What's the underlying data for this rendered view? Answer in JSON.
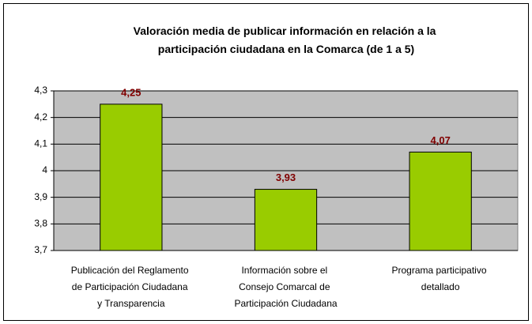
{
  "chart_data": {
    "type": "bar",
    "title": "Valoración media de publicar información en relación a la participación ciudadana en la Comarca (de 1 a 5)",
    "categories": [
      "Publicación del Reglamento de Participación Ciudadana y Transparencia",
      "Información sobre el Consejo Comarcal de Participación Ciudadana",
      "Programa participativo detallado"
    ],
    "values": [
      4.25,
      3.93,
      4.07
    ],
    "value_labels": [
      "4,25",
      "3,93",
      "4,07"
    ],
    "color": "#99cc00",
    "ylim": [
      3.7,
      4.3
    ],
    "yticks": [
      {
        "value": 3.7,
        "label": "3,7"
      },
      {
        "value": 3.8,
        "label": "3,8"
      },
      {
        "value": 3.9,
        "label": "3,9"
      },
      4,
      {
        "value": 4.1,
        "label": "4,1"
      },
      {
        "value": 4.2,
        "label": "4,2"
      },
      {
        "value": 4.3,
        "label": "4,3"
      }
    ],
    "grid": true
  }
}
